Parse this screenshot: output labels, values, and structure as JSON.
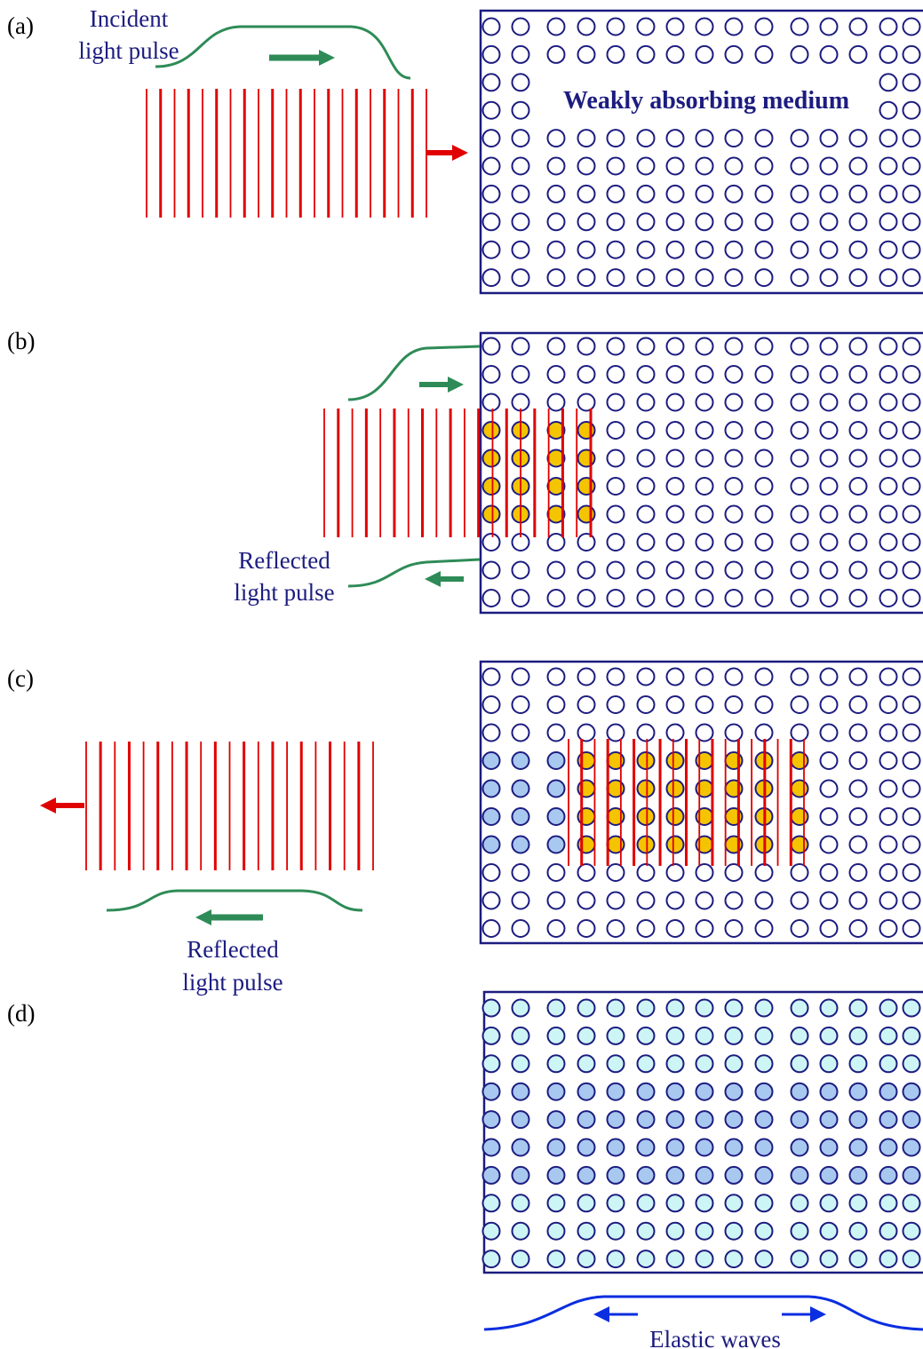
{
  "panels": [
    {
      "label": "(a)",
      "pulse_label": [
        "Incident",
        "light pulse"
      ],
      "medium_label": "Weakly absorbing medium"
    },
    {
      "label": "(b)",
      "pulse_label": [
        "Reflected",
        "light pulse"
      ]
    },
    {
      "label": "(c)",
      "pulse_label": [
        "Reflected",
        "light pulse"
      ]
    },
    {
      "label": "(d)",
      "wave_label": "Elastic waves"
    }
  ]
}
